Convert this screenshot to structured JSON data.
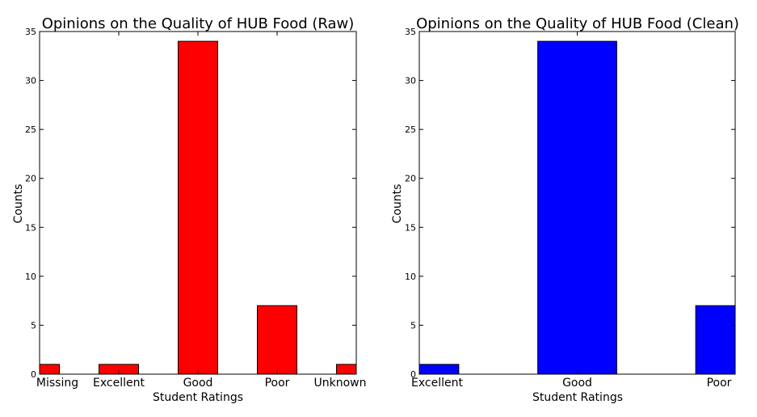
{
  "chart_data": [
    {
      "type": "bar",
      "title": "Opinions on the Quality of HUB Food (Raw)",
      "xlabel": "Student Ratings",
      "ylabel": "Counts",
      "categories": [
        "Missing",
        "Excellent",
        "Good",
        "Poor",
        "Unknown"
      ],
      "values": [
        1,
        1,
        34,
        7,
        1
      ],
      "ylim": [
        0,
        35
      ],
      "yticks": [
        0,
        5,
        10,
        15,
        20,
        25,
        30,
        35
      ],
      "bar_color": "#ff0000",
      "grid": false,
      "legend": "none"
    },
    {
      "type": "bar",
      "title": "Opinions on the Quality of HUB Food (Clean)",
      "xlabel": "Student Ratings",
      "ylabel": "Counts",
      "categories": [
        "Excellent",
        "Good",
        "Poor"
      ],
      "values": [
        1,
        34,
        7
      ],
      "ylim": [
        0,
        35
      ],
      "yticks": [
        0,
        5,
        10,
        15,
        20,
        25,
        30,
        35
      ],
      "bar_color": "#0000ff",
      "grid": false,
      "legend": "none"
    }
  ]
}
